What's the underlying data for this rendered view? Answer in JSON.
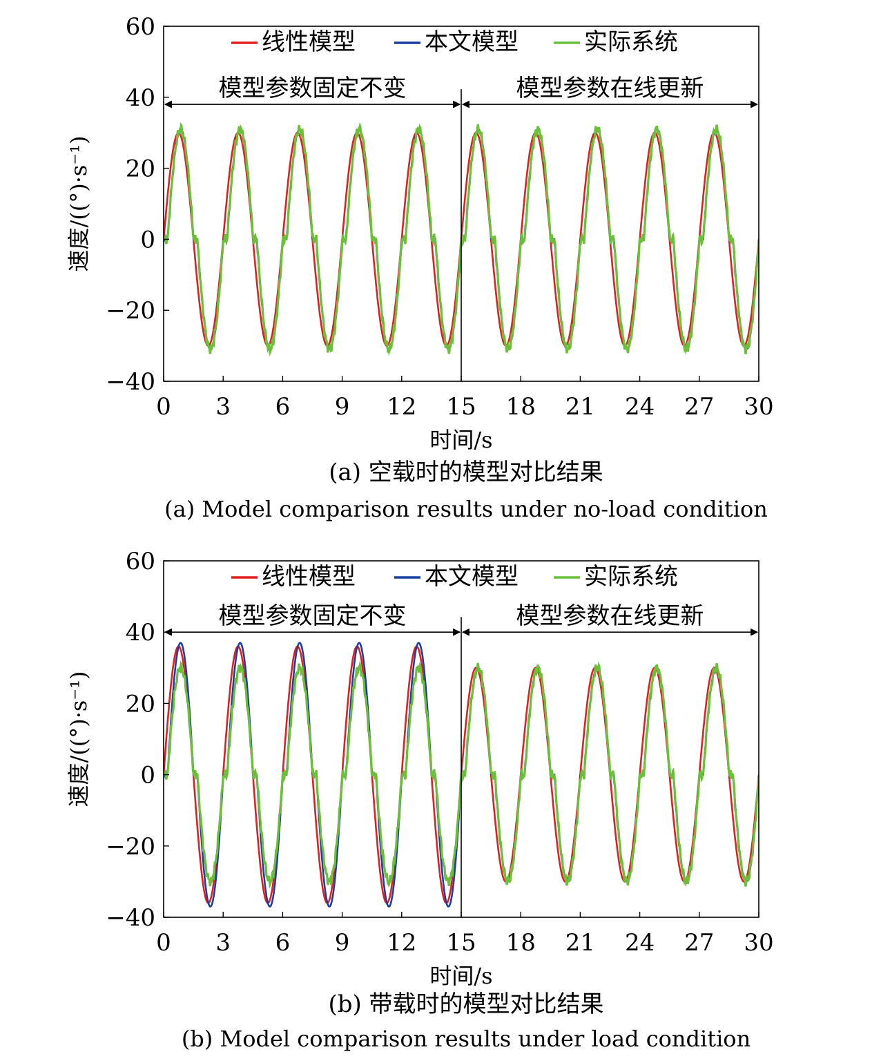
{
  "chart_data": [
    {
      "type": "line",
      "panel_id": "a",
      "xlabel": "时间/s",
      "ylabel": "速度/((°)·s⁻¹)",
      "xlim": [
        0,
        30
      ],
      "ylim": [
        -40,
        60
      ],
      "xticks": [
        0,
        3,
        6,
        9,
        12,
        15,
        18,
        21,
        24,
        27,
        30
      ],
      "yticks": [
        -40,
        -20,
        0,
        20,
        40,
        60
      ],
      "grid": false,
      "legend_position": "top",
      "annotations": [
        {
          "text": "模型参数固定不变",
          "x_from": 0,
          "x_to": 15,
          "y": 38
        },
        {
          "text": "模型参数在线更新",
          "x_from": 15,
          "x_to": 30,
          "y": 38
        }
      ],
      "divider_x": 15,
      "period_s": 3,
      "caption_cn": "(a) 空载时的模型对比结果",
      "caption_en": "(a) Model comparison results under no-load condition",
      "series": [
        {
          "name": "线性模型",
          "color": "#e02020",
          "segments": [
            {
              "x_range": [
                0,
                15
              ],
              "amplitude": 30
            },
            {
              "x_range": [
                15,
                30
              ],
              "amplitude": 30
            }
          ],
          "deadzone": false
        },
        {
          "name": "本文模型",
          "color": "#1f3fa0",
          "segments": [
            {
              "x_range": [
                0,
                15
              ],
              "amplitude": 31
            },
            {
              "x_range": [
                15,
                30
              ],
              "amplitude": 31
            }
          ],
          "deadzone": true
        },
        {
          "name": "实际系统",
          "color": "#6cbf3a",
          "segments": [
            {
              "x_range": [
                0,
                15
              ],
              "amplitude": 31
            },
            {
              "x_range": [
                15,
                30
              ],
              "amplitude": 31
            }
          ],
          "deadzone": true
        }
      ]
    },
    {
      "type": "line",
      "panel_id": "b",
      "xlabel": "时间/s",
      "ylabel": "速度/((°)·s⁻¹)",
      "xlim": [
        0,
        30
      ],
      "ylim": [
        -40,
        60
      ],
      "xticks": [
        0,
        3,
        6,
        9,
        12,
        15,
        18,
        21,
        24,
        27,
        30
      ],
      "yticks": [
        -40,
        -20,
        0,
        20,
        40,
        60
      ],
      "grid": false,
      "legend_position": "top",
      "annotations": [
        {
          "text": "模型参数固定不变",
          "x_from": 0,
          "x_to": 15,
          "y": 40
        },
        {
          "text": "模型参数在线更新",
          "x_from": 15,
          "x_to": 30,
          "y": 40
        }
      ],
      "divider_x": 15,
      "period_s": 3,
      "caption_cn": "(b) 带载时的模型对比结果",
      "caption_en": "(b) Model comparison results under load condition",
      "series": [
        {
          "name": "线性模型",
          "color": "#e02020",
          "segments": [
            {
              "x_range": [
                0,
                15
              ],
              "amplitude": 36
            },
            {
              "x_range": [
                15,
                30
              ],
              "amplitude": 30
            }
          ],
          "deadzone": false
        },
        {
          "name": "本文模型",
          "color": "#1f3fa0",
          "segments": [
            {
              "x_range": [
                0,
                15
              ],
              "amplitude": 37
            },
            {
              "x_range": [
                15,
                30
              ],
              "amplitude": 30
            }
          ],
          "deadzone": true
        },
        {
          "name": "实际系统",
          "color": "#6cbf3a",
          "segments": [
            {
              "x_range": [
                0,
                15
              ],
              "amplitude": 30
            },
            {
              "x_range": [
                15,
                30
              ],
              "amplitude": 30
            }
          ],
          "deadzone": true
        }
      ]
    }
  ]
}
